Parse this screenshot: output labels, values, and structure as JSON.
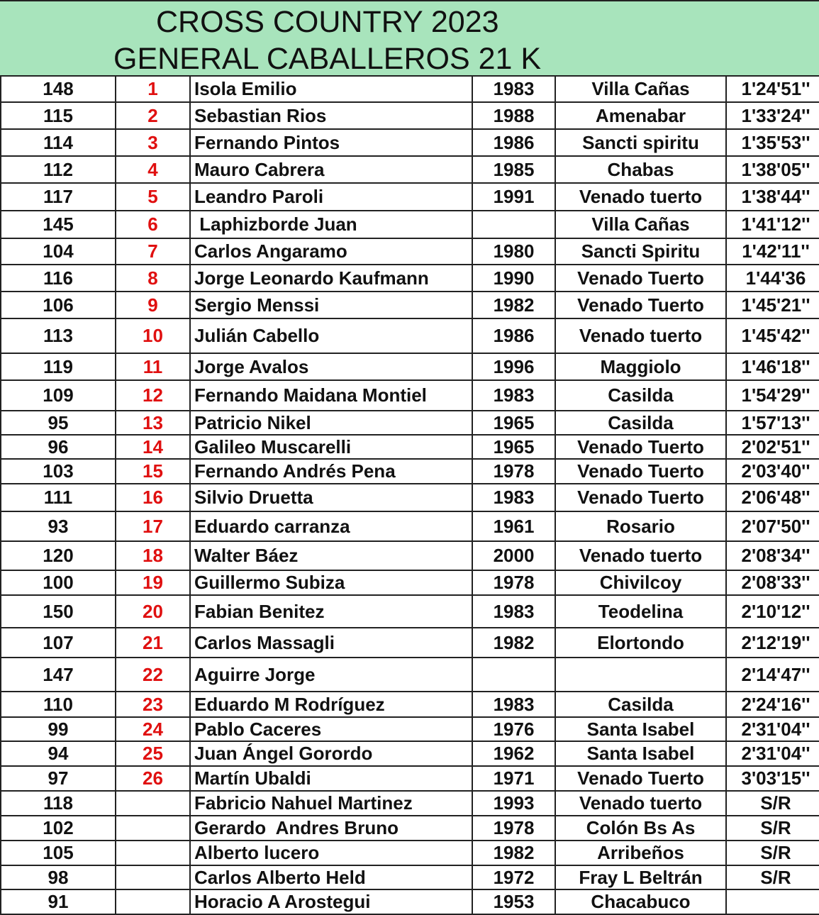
{
  "header": {
    "title_line1": "CROSS COUNTRY 2023",
    "title_line2": "GENERAL CABALLEROS 21 K",
    "background_color": "#a8e4bc"
  },
  "colors": {
    "place_number": "#e01010",
    "text": "#111111"
  },
  "rows": [
    {
      "bib": "148",
      "place": "1",
      "name": "Isola Emilio",
      "year": "1983",
      "city": "Villa Cañas",
      "time": "1'24'51''"
    },
    {
      "bib": "115",
      "place": "2",
      "name": "Sebastian Rios",
      "year": "1988",
      "city": "Amenabar",
      "time": "1'33'24''"
    },
    {
      "bib": "114",
      "place": "3",
      "name": "Fernando Pintos",
      "year": "1986",
      "city": "Sancti spiritu",
      "time": "1'35'53''"
    },
    {
      "bib": "112",
      "place": "4",
      "name": "Mauro Cabrera",
      "year": "1985",
      "city": "Chabas",
      "time": "1'38'05''"
    },
    {
      "bib": "117",
      "place": "5",
      "name": "Leandro Paroli",
      "year": "1991",
      "city": "Venado tuerto",
      "time": "1'38'44''"
    },
    {
      "bib": "145",
      "place": "6",
      "name": " Laphizborde Juan",
      "year": "",
      "city": "Villa Cañas",
      "time": "1'41'12''"
    },
    {
      "bib": "104",
      "place": "7",
      "name": "Carlos Angaramo",
      "year": "1980",
      "city": "Sancti Spiritu",
      "time": "1'42'11''"
    },
    {
      "bib": "116",
      "place": "8",
      "name": "Jorge Leonardo Kaufmann",
      "year": "1990",
      "city": "Venado Tuerto",
      "time": "1'44'36"
    },
    {
      "bib": "106",
      "place": "9",
      "name": "Sergio Menssi",
      "year": "1982",
      "city": "Venado Tuerto",
      "time": "1'45'21''"
    },
    {
      "bib": "113",
      "place": "10",
      "name": "Julián Cabello",
      "year": "1986",
      "city": "Venado tuerto",
      "time": "1'45'42''"
    },
    {
      "bib": "119",
      "place": "11",
      "name": "Jorge Avalos",
      "year": "1996",
      "city": "Maggiolo",
      "time": "1'46'18''"
    },
    {
      "bib": "109",
      "place": "12",
      "name": "Fernando Maidana Montiel",
      "year": "1983",
      "city": "Casilda",
      "time": "1'54'29''"
    },
    {
      "bib": "95",
      "place": "13",
      "name": "Patricio Nikel",
      "year": "1965",
      "city": "Casilda",
      "time": "1'57'13''"
    },
    {
      "bib": "96",
      "place": "14",
      "name": "Galileo Muscarelli",
      "year": "1965",
      "city": "Venado Tuerto",
      "time": "2'02'51''"
    },
    {
      "bib": "103",
      "place": "15",
      "name": "Fernando Andrés Pena",
      "year": "1978",
      "city": "Venado Tuerto",
      "time": "2'03'40''"
    },
    {
      "bib": "111",
      "place": "16",
      "name": "Silvio Druetta",
      "year": "1983",
      "city": "Venado Tuerto",
      "time": "2'06'48''"
    },
    {
      "bib": "93",
      "place": "17",
      "name": "Eduardo carranza",
      "year": "1961",
      "city": "Rosario",
      "time": "2'07'50''"
    },
    {
      "bib": "120",
      "place": "18",
      "name": "Walter Báez",
      "year": "2000",
      "city": "Venado tuerto",
      "time": "2'08'34''"
    },
    {
      "bib": "100",
      "place": "19",
      "name": "Guillermo Subiza",
      "year": "1978",
      "city": "Chivilcoy",
      "time": "2'08'33''"
    },
    {
      "bib": "150",
      "place": "20",
      "name": "Fabian Benitez",
      "year": "1983",
      "city": "Teodelina",
      "time": "2'10'12''"
    },
    {
      "bib": "107",
      "place": "21",
      "name": "Carlos Massagli",
      "year": "1982",
      "city": "Elortondo",
      "time": "2'12'19''"
    },
    {
      "bib": "147",
      "place": "22",
      "name": "Aguirre Jorge",
      "year": "",
      "city": "",
      "time": "2'14'47''"
    },
    {
      "bib": "110",
      "place": "23",
      "name": "Eduardo M Rodríguez",
      "year": "1983",
      "city": "Casilda",
      "time": "2'24'16''"
    },
    {
      "bib": "99",
      "place": "24",
      "name": "Pablo Caceres",
      "year": "1976",
      "city": "Santa Isabel",
      "time": "2'31'04''"
    },
    {
      "bib": "94",
      "place": "25",
      "name": "Juan Ángel Gorordo",
      "year": "1962",
      "city": "Santa Isabel",
      "time": "2'31'04''"
    },
    {
      "bib": "97",
      "place": "26",
      "name": "Martín Ubaldi",
      "year": "1971",
      "city": "Venado Tuerto",
      "time": "3'03'15''"
    },
    {
      "bib": "118",
      "place": "",
      "name": "Fabricio Nahuel Martinez",
      "year": "1993",
      "city": "Venado tuerto",
      "time": "S/R"
    },
    {
      "bib": "102",
      "place": "",
      "name": "Gerardo  Andres Bruno",
      "year": "1978",
      "city": "Colón Bs As",
      "time": "S/R"
    },
    {
      "bib": "105",
      "place": "",
      "name": "Alberto lucero",
      "year": "1982",
      "city": "Arribeños",
      "time": "S/R"
    },
    {
      "bib": "98",
      "place": "",
      "name": "Carlos Alberto Held",
      "year": "1972",
      "city": "Fray L Beltrán",
      "time": "S/R"
    },
    {
      "bib": "91",
      "place": "",
      "name": "Horacio A Arostegui",
      "year": "1953",
      "city": "Chacabuco",
      "time": ""
    }
  ]
}
